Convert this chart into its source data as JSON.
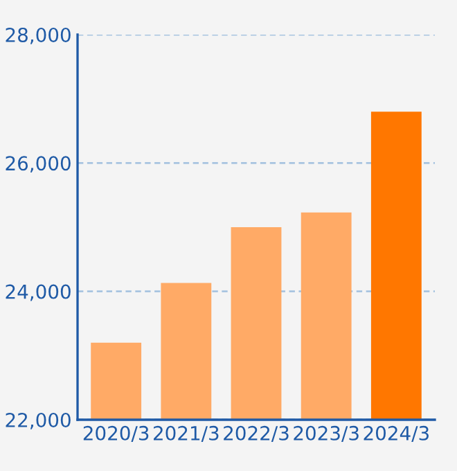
{
  "chart_data": {
    "type": "bar",
    "categories": [
      "2020/3",
      "2021/3",
      "2022/3",
      "2023/3",
      "2024/3"
    ],
    "values": [
      23200,
      24130,
      25000,
      25230,
      26800
    ],
    "colors": [
      "#ffaa66",
      "#ffaa66",
      "#ffaa66",
      "#ffaa66",
      "#ff7700"
    ],
    "ylim": [
      22000,
      28000
    ],
    "yticks": [
      {
        "value": 22000,
        "label": "22,000"
      },
      {
        "value": 24000,
        "label": "24,000"
      },
      {
        "value": 26000,
        "label": "26,000"
      },
      {
        "value": 28000,
        "label": "28,000"
      }
    ],
    "grid": "y",
    "legend": false
  }
}
